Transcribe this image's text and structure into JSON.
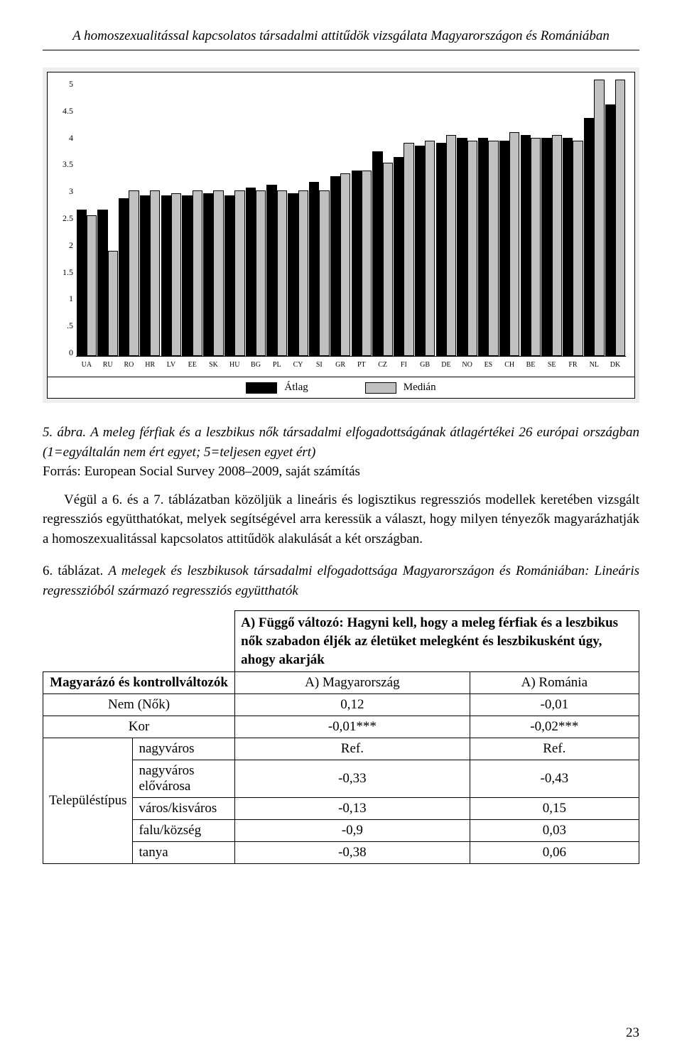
{
  "running_head": "A homoszexualitással kapcsolatos társadalmi attitűdök vizsgálata Magyarországon és Romániában",
  "chart": {
    "type": "bar",
    "ylim": [
      0,
      5
    ],
    "ytick_step": 0.5,
    "yticks": [
      "0",
      ".5",
      "1",
      "1.5",
      "2",
      "2.5",
      "3",
      "3.5",
      "4",
      "4.5",
      "5"
    ],
    "bar_colors": {
      "atlag": "#000000",
      "median": "#c0c0c0"
    },
    "background_color": "#ffffff",
    "panel_background": "#eeeeee",
    "grid_color": "#000000",
    "font_size_ticks": 12,
    "legend": {
      "atlag_label": "Átlag",
      "median_label": "Medián"
    },
    "countries": [
      "UA",
      "RU",
      "RO",
      "HR",
      "LV",
      "EE",
      "SK",
      "HU",
      "BG",
      "PL",
      "CY",
      "SI",
      "GR",
      "PT",
      "CZ",
      "FI",
      "GB",
      "DE",
      "NO",
      "ES",
      "CH",
      "BE",
      "SE",
      "FR",
      "NL",
      "DK"
    ],
    "atlag": [
      2.65,
      2.65,
      2.85,
      2.9,
      2.9,
      2.9,
      2.95,
      2.9,
      3.05,
      3.1,
      2.95,
      3.15,
      3.25,
      3.35,
      3.7,
      3.6,
      3.8,
      3.85,
      3.95,
      3.95,
      3.9,
      4.0,
      3.95,
      3.95,
      4.3,
      4.55
    ],
    "median": [
      2.55,
      1.9,
      3.0,
      3.0,
      2.95,
      3.0,
      3.0,
      3.0,
      3.0,
      3.0,
      3.0,
      3.0,
      3.3,
      3.35,
      3.5,
      3.85,
      3.9,
      4.0,
      3.9,
      3.9,
      4.05,
      3.95,
      4.0,
      3.9,
      5.0,
      5.0
    ]
  },
  "caption5": {
    "lead": "5. ábra.",
    "title_italic": "A meleg férfiak és a leszbikus nők társadalmi elfogadottságának átlagértékei 26 európai országban (1=egyáltalán nem ért egyet; 5=teljesen egyet ért)",
    "source": "Forrás: European Social Survey 2008–2009, saját számítás"
  },
  "body_para": "Végül a 6. és a 7. táblázatban közöljük a lineáris és logisztikus regressziós modellek keretében vizsgált regressziós együtthatókat, melyek segítségével arra keressük a választ, hogy milyen tényezők magyarázhatják a homoszexualitással kapcsolatos attitűdök alakulását a két országban.",
  "caption6": {
    "lead": "6. táblázat.",
    "title_italic": "A melegek és leszbikusok társadalmi elfogadottsága Magyarországon és Romániában: Lineáris regresszióból származó regressziós együtthatók"
  },
  "table": {
    "dep_var": "A) Függő változó: Hagyni kell, hogy a meleg férfiak és a leszbikus nők szabadon éljék az életüket melegként és leszbikusként úgy, ahogy akarják",
    "explan_head": "Magyarázó és kontrollváltozók",
    "col_hu": "A) Magyarország",
    "col_ro": "A) Románia",
    "rows": [
      {
        "group": "",
        "label": "Nem (Nők)",
        "hu": "0,12",
        "ro": "-0,01"
      },
      {
        "group": "",
        "label": "Kor",
        "hu": "-0,01***",
        "ro": "-0,02***"
      },
      {
        "group": "Településtípus",
        "label": "nagyváros",
        "hu": "Ref.",
        "ro": "Ref."
      },
      {
        "group": "",
        "label": "nagyváros elővárosa",
        "hu": "-0,33",
        "ro": "-0,43"
      },
      {
        "group": "",
        "label": "város/kisváros",
        "hu": "-0,13",
        "ro": "0,15"
      },
      {
        "group": "",
        "label": "falu/község",
        "hu": "-0,9",
        "ro": "0,03"
      },
      {
        "group": "",
        "label": "tanya",
        "hu": "-0,38",
        "ro": "0,06"
      }
    ]
  },
  "page_number": "23"
}
